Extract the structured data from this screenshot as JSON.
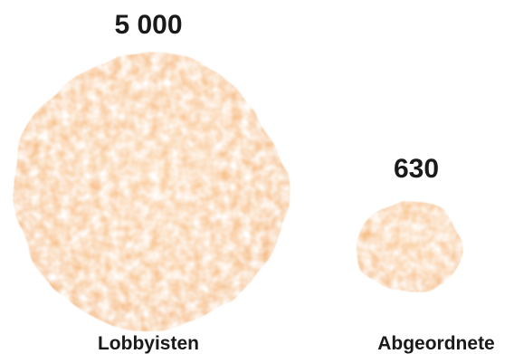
{
  "chart_data": {
    "type": "bubble",
    "title": "",
    "categories": [
      "Lobbyisten",
      "Abgeordnete"
    ],
    "values": [
      5000,
      630
    ],
    "value_labels": [
      "5 000",
      "630"
    ],
    "color": "#f4a04f",
    "grid": false,
    "legend": "none"
  }
}
